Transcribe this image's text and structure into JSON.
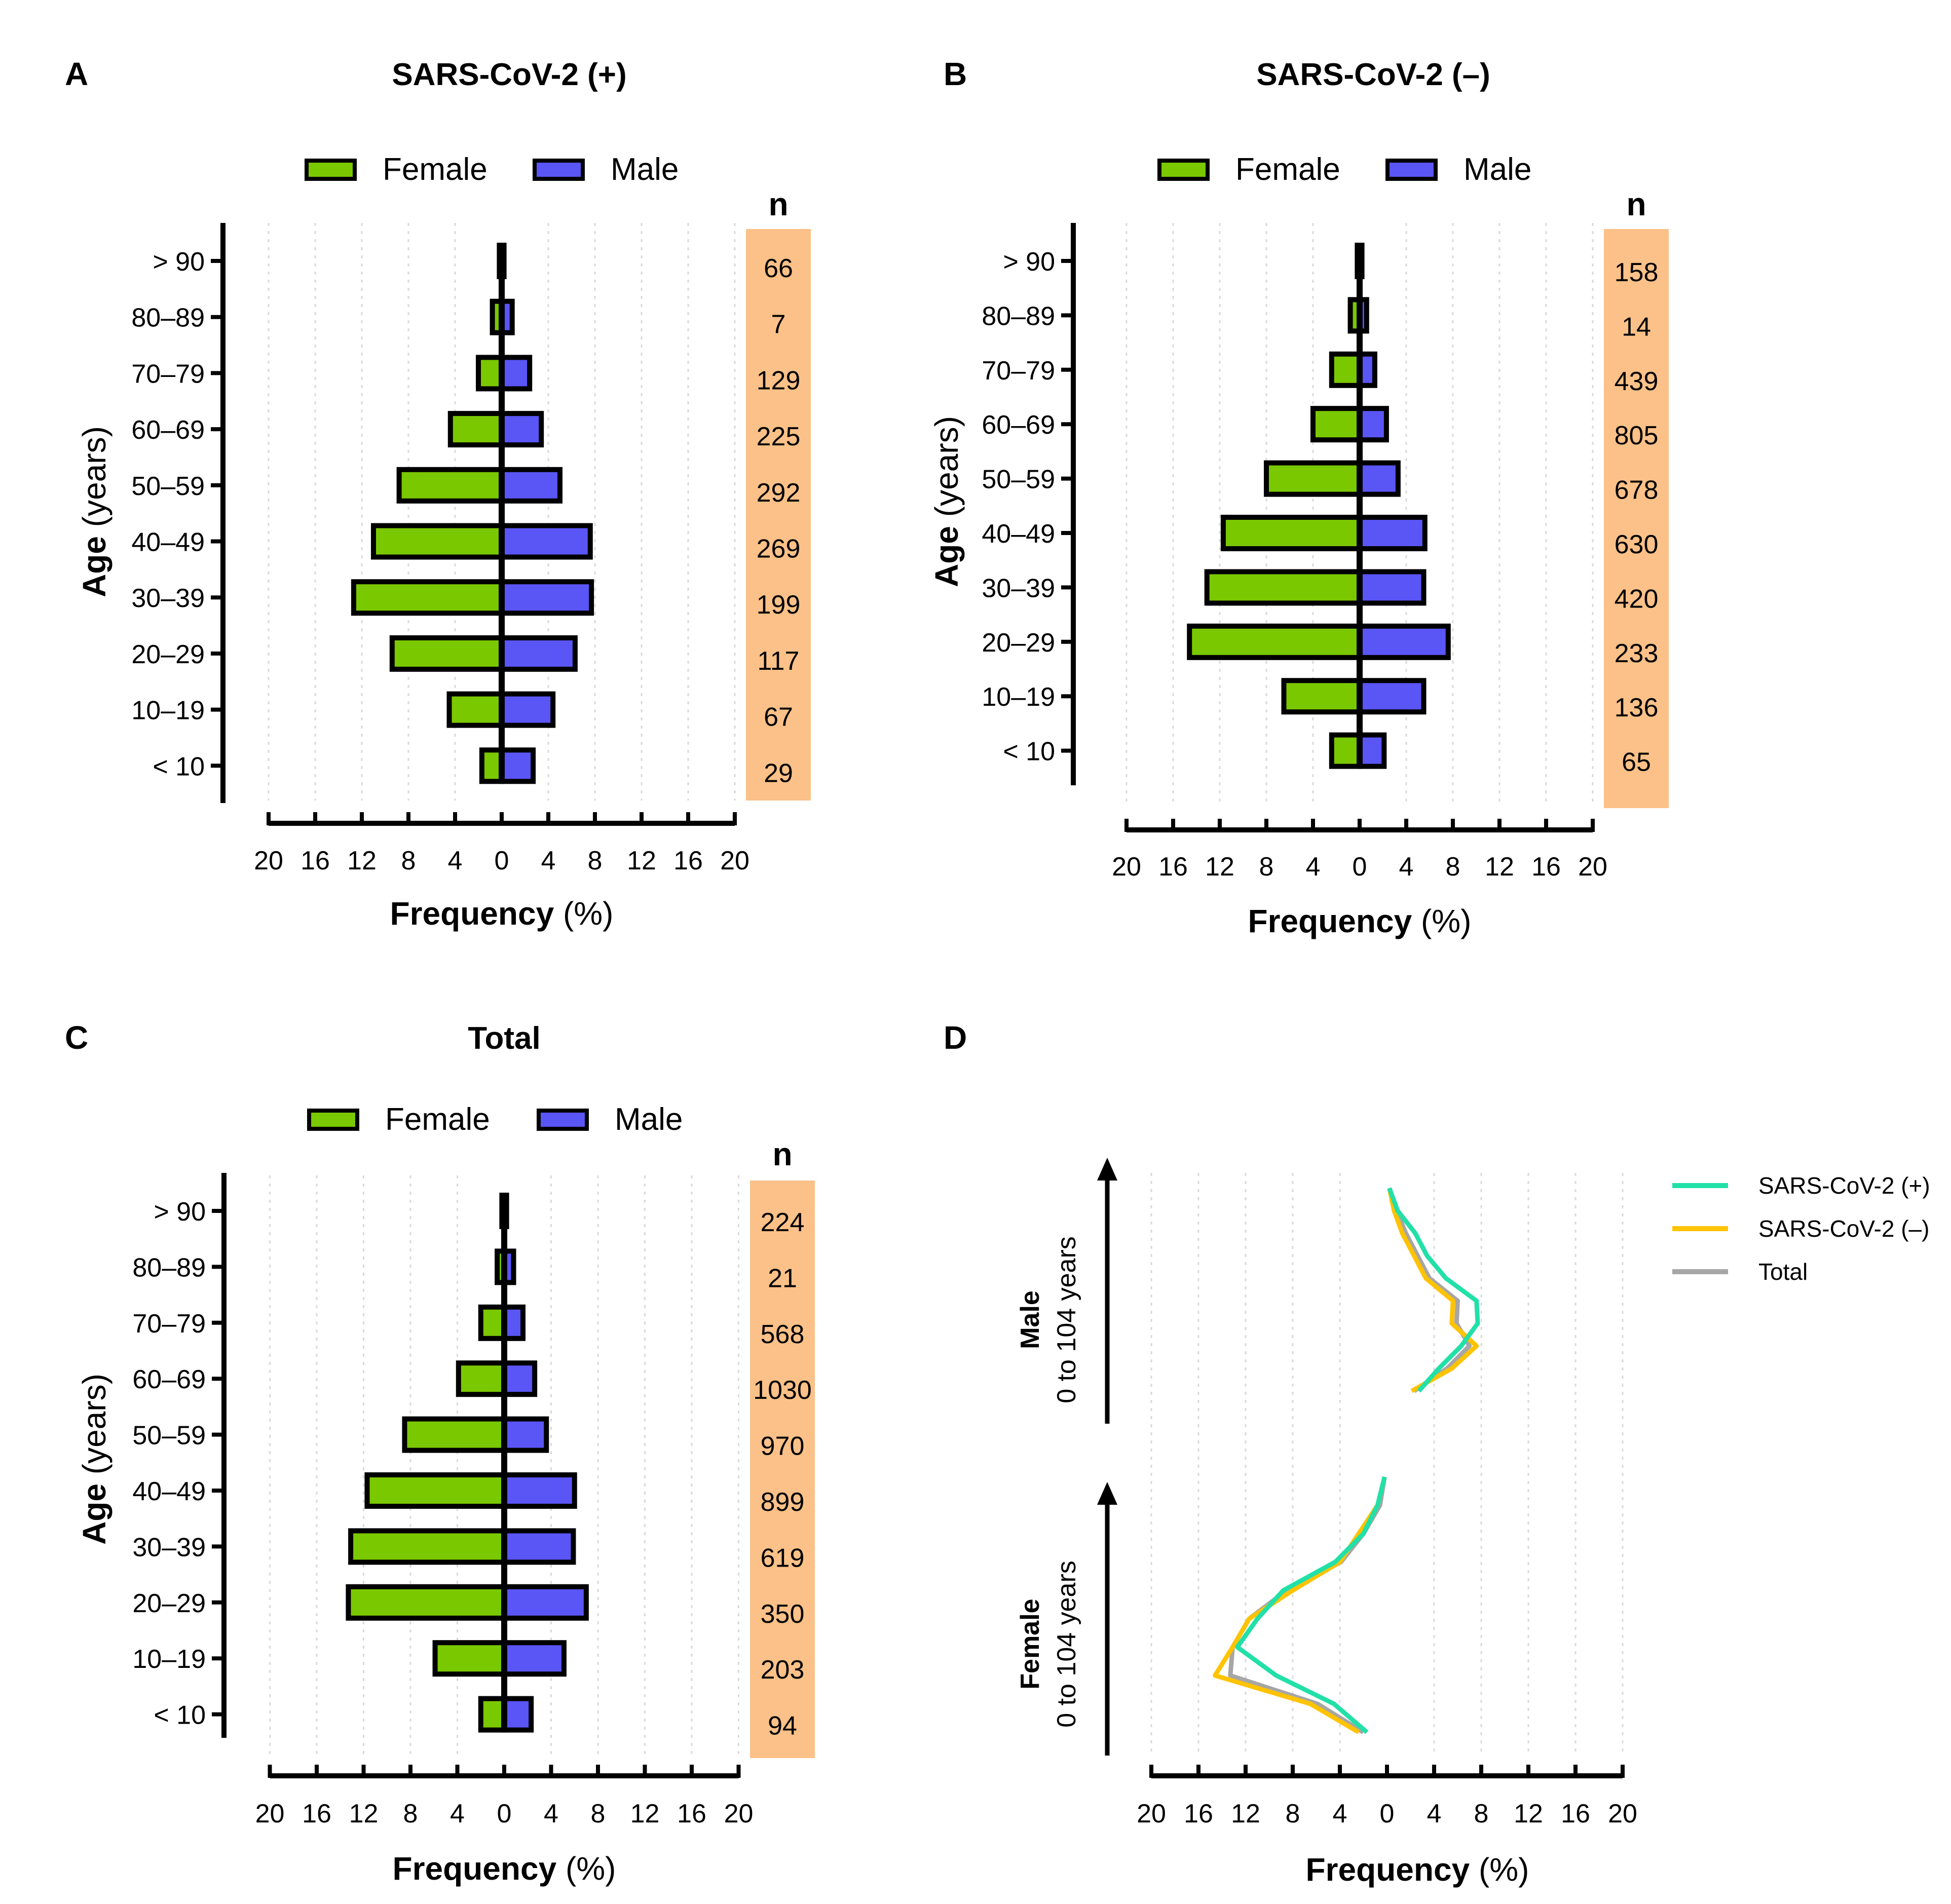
{
  "colors": {
    "female": "#7ac800",
    "male": "#5a55f5",
    "n_column": "#fbc188",
    "grid": "#d9d9d9",
    "pos_line": "#21e0a8",
    "neg_line": "#ffc300",
    "total_line": "#a6a6a6"
  },
  "chart_data": [
    {
      "id": "A",
      "type": "bar",
      "letter": "A",
      "title": "SARS-CoV-2 (+)",
      "legend": {
        "female": "Female",
        "male": "Male"
      },
      "n_header": "n",
      "ylabel_bold": "Age",
      "ylabel_normal": " (years)",
      "xlabel_bold": "Frequency",
      "xlabel_normal": " (%)",
      "xlim": [
        -20,
        20
      ],
      "x_ticks": [
        "20",
        "16",
        "12",
        "8",
        "4",
        "0",
        "4",
        "8",
        "12",
        "16",
        "20"
      ],
      "categories": [
        "> 90",
        "80–89",
        "70–79",
        "60–69",
        "50–59",
        "40–49",
        "30–39",
        "20–29",
        "10–19",
        "< 10"
      ],
      "series": [
        {
          "name": "Female",
          "values": [
            0.2,
            0.8,
            2.0,
            4.4,
            8.8,
            11.0,
            12.7,
            9.4,
            4.5,
            1.7
          ]
        },
        {
          "name": "Male",
          "values": [
            0.2,
            0.9,
            2.4,
            3.4,
            5.0,
            7.6,
            7.7,
            6.3,
            4.4,
            2.7
          ]
        }
      ],
      "n": [
        "66",
        "7",
        "129",
        "225",
        "292",
        "269",
        "199",
        "117",
        "67",
        "29"
      ]
    },
    {
      "id": "B",
      "type": "bar",
      "letter": "B",
      "title": "SARS-CoV-2 (–)",
      "legend": {
        "female": "Female",
        "male": "Male"
      },
      "n_header": "n",
      "ylabel_bold": "Age",
      "ylabel_normal": " (years)",
      "xlabel_bold": "Frequency",
      "xlabel_normal": " (%)",
      "xlim": [
        -20,
        20
      ],
      "x_ticks": [
        "20",
        "16",
        "12",
        "8",
        "4",
        "0",
        "4",
        "8",
        "12",
        "16",
        "20"
      ],
      "categories": [
        "> 90",
        "80–89",
        "70–79",
        "60–69",
        "50–59",
        "40–49",
        "30–39",
        "20–29",
        "10–19",
        "< 10"
      ],
      "series": [
        {
          "name": "Female",
          "values": [
            0.2,
            0.8,
            2.4,
            4.0,
            8.0,
            11.7,
            13.1,
            14.6,
            6.5,
            2.4
          ]
        },
        {
          "name": "Male",
          "values": [
            0.2,
            0.6,
            1.3,
            2.3,
            3.3,
            5.6,
            5.5,
            7.6,
            5.5,
            2.1
          ]
        }
      ],
      "n": [
        "158",
        "14",
        "439",
        "805",
        "678",
        "630",
        "420",
        "233",
        "136",
        "65"
      ]
    },
    {
      "id": "C",
      "type": "bar",
      "letter": "C",
      "title": "Total",
      "legend": {
        "female": "Female",
        "male": "Male"
      },
      "n_header": "n",
      "ylabel_bold": "Age",
      "ylabel_normal": " (years)",
      "xlabel_bold": "Frequency",
      "xlabel_normal": " (%)",
      "xlim": [
        -20,
        20
      ],
      "x_ticks": [
        "20",
        "16",
        "12",
        "8",
        "4",
        "0",
        "4",
        "8",
        "12",
        "16",
        "20"
      ],
      "categories": [
        "> 90",
        "80–89",
        "70–79",
        "60–69",
        "50–59",
        "40–49",
        "30–39",
        "20–29",
        "10–19",
        "< 10"
      ],
      "series": [
        {
          "name": "Female",
          "values": [
            0.2,
            0.6,
            2.0,
            3.9,
            8.5,
            11.7,
            13.1,
            13.3,
            5.9,
            2.0
          ]
        },
        {
          "name": "Male",
          "values": [
            0.2,
            0.8,
            1.6,
            2.6,
            3.6,
            6.0,
            5.9,
            7.0,
            5.1,
            2.3
          ]
        }
      ],
      "n": [
        "224",
        "21",
        "568",
        "1030",
        "970",
        "899",
        "619",
        "350",
        "203",
        "94"
      ]
    },
    {
      "id": "D",
      "type": "line",
      "letter": "D",
      "xlabel_bold": "Frequency",
      "xlabel_normal": " (%)",
      "xlim": [
        -20,
        20
      ],
      "x_ticks": [
        "20",
        "16",
        "12",
        "8",
        "4",
        "0",
        "4",
        "8",
        "12",
        "16",
        "20"
      ],
      "group_labels": {
        "male_bold": "Male",
        "male_normal": "0 to 104 years",
        "female_bold": "Female",
        "female_normal": "0 to 104 years"
      },
      "legend": [
        "SARS-CoV-2 (+)",
        "SARS-CoV-2 (–)",
        "Total"
      ],
      "age_order": [
        "> 90",
        "80–89",
        "70–79",
        "60–69",
        "50–59",
        "40–49",
        "30–39",
        "20–29",
        "10–19",
        "< 10"
      ],
      "series": [
        {
          "name": "SARS-CoV-2 (+)",
          "male": [
            0.2,
            0.9,
            2.4,
            3.4,
            5.0,
            7.6,
            7.7,
            6.3,
            4.4,
            2.7
          ],
          "female": [
            0.2,
            0.8,
            2.0,
            4.4,
            8.8,
            11.0,
            12.7,
            9.4,
            4.5,
            1.7
          ]
        },
        {
          "name": "SARS-CoV-2 (–)",
          "male": [
            0.2,
            0.6,
            1.3,
            2.3,
            3.3,
            5.6,
            5.5,
            7.6,
            5.5,
            2.1
          ],
          "female": [
            0.2,
            0.8,
            2.4,
            4.0,
            8.0,
            11.7,
            13.1,
            14.6,
            6.5,
            2.4
          ]
        },
        {
          "name": "Total",
          "male": [
            0.2,
            0.8,
            1.6,
            2.6,
            3.6,
            6.0,
            5.9,
            7.0,
            5.1,
            2.3
          ],
          "female": [
            0.2,
            0.6,
            2.0,
            3.9,
            8.5,
            11.7,
            13.1,
            13.3,
            5.9,
            2.0
          ]
        }
      ]
    }
  ]
}
